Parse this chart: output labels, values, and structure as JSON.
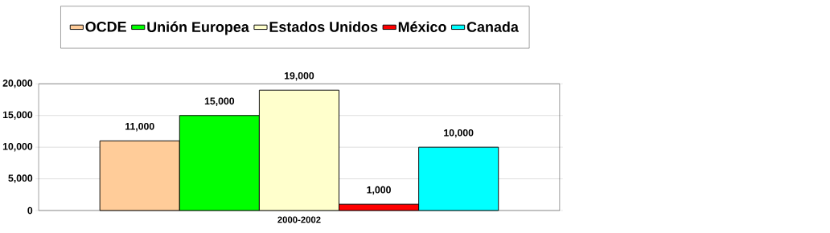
{
  "chart_data": {
    "type": "bar",
    "categories": [
      "2000-2002"
    ],
    "series": [
      {
        "name": "OCDE",
        "color": "#ffcc99",
        "values": [
          11000
        ],
        "value_labels": [
          "11,000"
        ]
      },
      {
        "name": "Unión Europea",
        "color": "#00ff00",
        "values": [
          15000
        ],
        "value_labels": [
          "15,000"
        ]
      },
      {
        "name": "Estados Unidos",
        "color": "#ffffcc",
        "values": [
          19000
        ],
        "value_labels": [
          "19,000"
        ]
      },
      {
        "name": "México",
        "color": "#ff0000",
        "values": [
          1000
        ],
        "value_labels": [
          "1,000"
        ]
      },
      {
        "name": "Canada",
        "color": "#00ffff",
        "values": [
          10000
        ],
        "value_labels": [
          "10,000"
        ]
      }
    ],
    "ylim": [
      0,
      20000
    ],
    "yticks": [
      {
        "value": 0,
        "label": "0"
      },
      {
        "value": 5000,
        "label": "5,000"
      },
      {
        "value": 10000,
        "label": "10,000"
      },
      {
        "value": 15000,
        "label": "15,000"
      },
      {
        "value": 20000,
        "label": "20,000"
      }
    ],
    "grid": "y",
    "legend": "top"
  }
}
